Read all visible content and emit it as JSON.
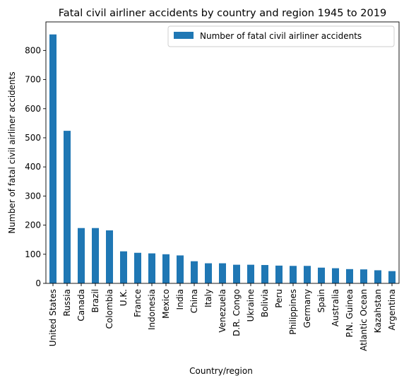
{
  "chart_data": {
    "type": "bar",
    "title": "Fatal civil airliner accidents by country and region 1945 to 2019",
    "xlabel": "Country/region",
    "ylabel": "Number of fatal civil airliner accidents",
    "categories": [
      "United States",
      "Russia",
      "Canada",
      "Brazil",
      "Colombia",
      "U.K.",
      "France",
      "Indonesia",
      "Mexico",
      "India",
      "China",
      "Italy",
      "Venezuela",
      "D.R. Congo",
      "Ukraine",
      "Bolivia",
      "Peru",
      "Philippines",
      "Germany",
      "Spain",
      "Australia",
      "P.N. Guinea",
      "Atlantic Ocean",
      "Kazahstan",
      "Argentina"
    ],
    "series": [
      {
        "name": "Number of fatal civil airliner accidents",
        "color": "#1f77b4",
        "values": [
          855,
          524,
          190,
          190,
          182,
          110,
          105,
          103,
          100,
          96,
          76,
          69,
          69,
          64,
          64,
          63,
          61,
          60,
          60,
          54,
          52,
          49,
          48,
          45,
          42
        ]
      }
    ],
    "ylim": [
      0,
      898
    ],
    "yticks": [
      0,
      100,
      200,
      300,
      400,
      500,
      600,
      700,
      800
    ],
    "grid": false,
    "legend": "top-right"
  }
}
